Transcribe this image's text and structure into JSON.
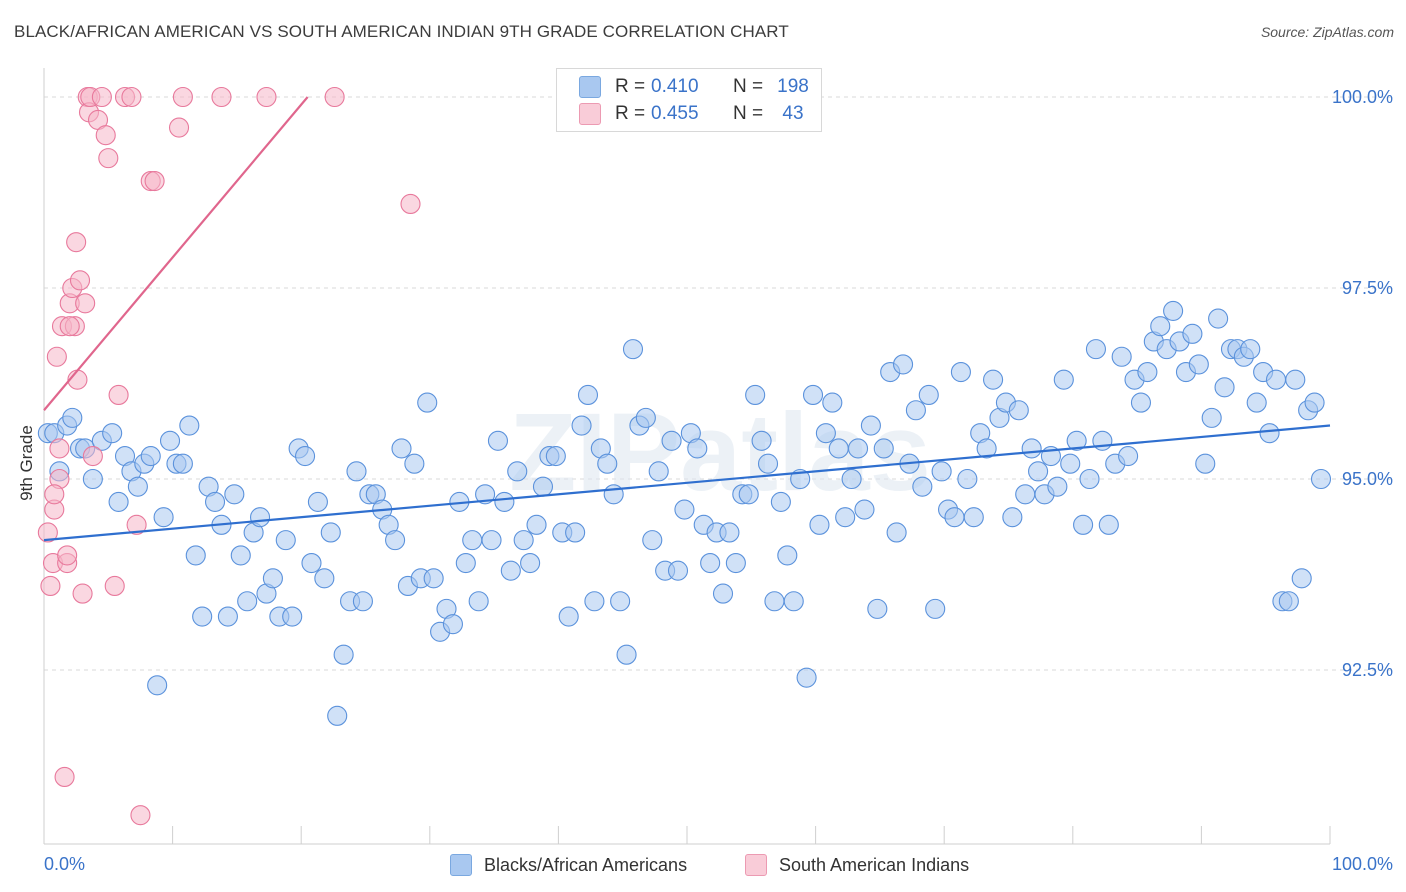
{
  "header": {
    "title": "BLACK/AFRICAN AMERICAN VS SOUTH AMERICAN INDIAN 9TH GRADE CORRELATION CHART",
    "source": "Source: ZipAtlas.com"
  },
  "watermark": "ZIPatlas",
  "legend_top": {
    "rows": [
      {
        "r_label": "R =",
        "r_value": "0.410",
        "n_label": "N =",
        "n_value": "198",
        "color": "#a9c8f0"
      },
      {
        "r_label": "R =",
        "r_value": "0.455",
        "n_label": "N =",
        "n_value": "43",
        "color": "#f5b6c8"
      }
    ]
  },
  "legend_bottom": {
    "items": [
      {
        "label": "Blacks/African Americans",
        "color": "#a9c8f0"
      },
      {
        "label": "South American Indians",
        "color": "#f5b6c8"
      }
    ]
  },
  "chart_data": {
    "type": "scatter",
    "title": "BLACK/AFRICAN AMERICAN VS SOUTH AMERICAN INDIAN 9TH GRADE CORRELATION CHART",
    "ylabel": "9th Grade",
    "xlabel": "",
    "xlim": [
      0,
      100
    ],
    "ylim": [
      90.0,
      100.2
    ],
    "x_tick_labels": [
      "0.0%",
      "100.0%"
    ],
    "y_ticks": [
      92.5,
      95.0,
      97.5,
      100.0
    ],
    "y_tick_labels": [
      "92.5%",
      "95.0%",
      "97.5%",
      "100.0%"
    ],
    "grid": "horizontal dashed",
    "legend_position": "top-center",
    "series": [
      {
        "name": "Blacks/African Americans",
        "color": "#5b92dc",
        "fill": "#a9c8f0",
        "trend": {
          "x": [
            0,
            100
          ],
          "y": [
            94.2,
            95.7
          ]
        },
        "points": [
          [
            0.3,
            95.6
          ],
          [
            0.8,
            95.6
          ],
          [
            1.2,
            95.1
          ],
          [
            1.8,
            95.7
          ],
          [
            2.2,
            95.8
          ],
          [
            2.8,
            95.4
          ],
          [
            3.2,
            95.4
          ],
          [
            3.8,
            95.0
          ],
          [
            4.5,
            95.5
          ],
          [
            5.3,
            95.6
          ],
          [
            5.8,
            94.7
          ],
          [
            6.3,
            95.3
          ],
          [
            6.8,
            95.1
          ],
          [
            7.3,
            94.9
          ],
          [
            7.8,
            95.2
          ],
          [
            8.3,
            95.3
          ],
          [
            8.8,
            92.3
          ],
          [
            9.3,
            94.5
          ],
          [
            9.8,
            95.5
          ],
          [
            10.3,
            95.2
          ],
          [
            10.8,
            95.2
          ],
          [
            11.3,
            95.7
          ],
          [
            11.8,
            94.0
          ],
          [
            12.3,
            93.2
          ],
          [
            12.8,
            94.9
          ],
          [
            13.3,
            94.7
          ],
          [
            13.8,
            94.4
          ],
          [
            14.3,
            93.2
          ],
          [
            14.8,
            94.8
          ],
          [
            15.3,
            94.0
          ],
          [
            15.8,
            93.4
          ],
          [
            16.3,
            94.3
          ],
          [
            16.8,
            94.5
          ],
          [
            17.3,
            93.5
          ],
          [
            17.8,
            93.7
          ],
          [
            18.3,
            93.2
          ],
          [
            18.8,
            94.2
          ],
          [
            19.3,
            93.2
          ],
          [
            19.8,
            95.4
          ],
          [
            20.3,
            95.3
          ],
          [
            20.8,
            93.9
          ],
          [
            21.3,
            94.7
          ],
          [
            21.8,
            93.7
          ],
          [
            22.3,
            94.3
          ],
          [
            22.8,
            91.9
          ],
          [
            23.3,
            92.7
          ],
          [
            23.8,
            93.4
          ],
          [
            24.3,
            95.1
          ],
          [
            24.8,
            93.4
          ],
          [
            25.3,
            94.8
          ],
          [
            25.8,
            94.8
          ],
          [
            26.3,
            94.6
          ],
          [
            26.8,
            94.4
          ],
          [
            27.3,
            94.2
          ],
          [
            27.8,
            95.4
          ],
          [
            28.3,
            93.6
          ],
          [
            28.8,
            95.2
          ],
          [
            29.3,
            93.7
          ],
          [
            29.8,
            96.0
          ],
          [
            30.3,
            93.7
          ],
          [
            30.8,
            93.0
          ],
          [
            31.3,
            93.3
          ],
          [
            31.8,
            93.1
          ],
          [
            32.3,
            94.7
          ],
          [
            32.8,
            93.9
          ],
          [
            33.3,
            94.2
          ],
          [
            33.8,
            93.4
          ],
          [
            34.3,
            94.8
          ],
          [
            34.8,
            94.2
          ],
          [
            35.3,
            95.5
          ],
          [
            35.8,
            94.7
          ],
          [
            36.3,
            93.8
          ],
          [
            36.8,
            95.1
          ],
          [
            37.3,
            94.2
          ],
          [
            37.8,
            93.9
          ],
          [
            38.3,
            94.4
          ],
          [
            38.8,
            94.9
          ],
          [
            39.3,
            95.3
          ],
          [
            39.8,
            95.3
          ],
          [
            40.3,
            94.3
          ],
          [
            40.8,
            93.2
          ],
          [
            41.3,
            94.3
          ],
          [
            41.8,
            95.7
          ],
          [
            42.3,
            96.1
          ],
          [
            42.8,
            93.4
          ],
          [
            43.3,
            95.4
          ],
          [
            43.8,
            95.2
          ],
          [
            44.3,
            94.8
          ],
          [
            44.8,
            93.4
          ],
          [
            45.3,
            92.7
          ],
          [
            45.8,
            96.7
          ],
          [
            46.3,
            95.7
          ],
          [
            46.8,
            95.8
          ],
          [
            47.3,
            94.2
          ],
          [
            47.8,
            95.1
          ],
          [
            48.3,
            93.8
          ],
          [
            48.8,
            95.5
          ],
          [
            49.3,
            93.8
          ],
          [
            49.8,
            94.6
          ],
          [
            50.3,
            95.6
          ],
          [
            50.8,
            95.4
          ],
          [
            51.3,
            94.4
          ],
          [
            51.8,
            93.9
          ],
          [
            52.3,
            94.3
          ],
          [
            52.8,
            93.5
          ],
          [
            53.3,
            94.3
          ],
          [
            53.8,
            93.9
          ],
          [
            54.3,
            94.8
          ],
          [
            54.8,
            94.8
          ],
          [
            55.3,
            96.1
          ],
          [
            55.8,
            95.5
          ],
          [
            56.3,
            95.2
          ],
          [
            56.8,
            93.4
          ],
          [
            57.3,
            94.7
          ],
          [
            57.8,
            94.0
          ],
          [
            58.3,
            93.4
          ],
          [
            58.8,
            95.0
          ],
          [
            59.3,
            92.4
          ],
          [
            59.8,
            96.1
          ],
          [
            60.3,
            94.4
          ],
          [
            60.8,
            95.6
          ],
          [
            61.3,
            96.0
          ],
          [
            61.8,
            95.4
          ],
          [
            62.3,
            94.5
          ],
          [
            62.8,
            95.0
          ],
          [
            63.3,
            95.4
          ],
          [
            63.8,
            94.6
          ],
          [
            64.3,
            95.7
          ],
          [
            64.8,
            93.3
          ],
          [
            65.3,
            95.4
          ],
          [
            65.8,
            96.4
          ],
          [
            66.3,
            94.3
          ],
          [
            66.8,
            96.5
          ],
          [
            67.3,
            95.2
          ],
          [
            67.8,
            95.9
          ],
          [
            68.3,
            94.9
          ],
          [
            68.8,
            96.1
          ],
          [
            69.3,
            93.3
          ],
          [
            69.8,
            95.1
          ],
          [
            70.3,
            94.6
          ],
          [
            70.8,
            94.5
          ],
          [
            71.3,
            96.4
          ],
          [
            71.8,
            95.0
          ],
          [
            72.3,
            94.5
          ],
          [
            72.8,
            95.6
          ],
          [
            73.3,
            95.4
          ],
          [
            73.8,
            96.3
          ],
          [
            74.3,
            95.8
          ],
          [
            74.8,
            96.0
          ],
          [
            75.3,
            94.5
          ],
          [
            75.8,
            95.9
          ],
          [
            76.3,
            94.8
          ],
          [
            76.8,
            95.4
          ],
          [
            77.3,
            95.1
          ],
          [
            77.8,
            94.8
          ],
          [
            78.3,
            95.3
          ],
          [
            78.8,
            94.9
          ],
          [
            79.3,
            96.3
          ],
          [
            79.8,
            95.2
          ],
          [
            80.3,
            95.5
          ],
          [
            80.8,
            94.4
          ],
          [
            81.3,
            95.0
          ],
          [
            81.8,
            96.7
          ],
          [
            82.3,
            95.5
          ],
          [
            82.8,
            94.4
          ],
          [
            83.3,
            95.2
          ],
          [
            83.8,
            96.6
          ],
          [
            84.3,
            95.3
          ],
          [
            84.8,
            96.3
          ],
          [
            85.3,
            96.0
          ],
          [
            85.8,
            96.4
          ],
          [
            86.3,
            96.8
          ],
          [
            86.8,
            97.0
          ],
          [
            87.3,
            96.7
          ],
          [
            87.8,
            97.2
          ],
          [
            88.3,
            96.8
          ],
          [
            88.8,
            96.4
          ],
          [
            89.3,
            96.9
          ],
          [
            89.8,
            96.5
          ],
          [
            90.3,
            95.2
          ],
          [
            90.8,
            95.8
          ],
          [
            91.3,
            97.1
          ],
          [
            91.8,
            96.2
          ],
          [
            92.3,
            96.7
          ],
          [
            92.8,
            96.7
          ],
          [
            93.3,
            96.6
          ],
          [
            93.8,
            96.7
          ],
          [
            94.3,
            96.0
          ],
          [
            94.8,
            96.4
          ],
          [
            95.3,
            95.6
          ],
          [
            95.8,
            96.3
          ],
          [
            96.3,
            93.4
          ],
          [
            96.8,
            93.4
          ],
          [
            97.3,
            96.3
          ],
          [
            97.8,
            93.7
          ],
          [
            98.3,
            95.9
          ],
          [
            98.8,
            96.0
          ],
          [
            99.3,
            95.0
          ]
        ]
      },
      {
        "name": "South American Indians",
        "color": "#e8799c",
        "fill": "#f5b6c8",
        "trend": {
          "x": [
            0,
            20.5
          ],
          "y": [
            95.9,
            100.0
          ]
        },
        "points": [
          [
            0.3,
            94.3
          ],
          [
            0.5,
            93.6
          ],
          [
            0.7,
            93.9
          ],
          [
            0.8,
            94.6
          ],
          [
            1.0,
            96.6
          ],
          [
            1.2,
            95.0
          ],
          [
            1.4,
            97.0
          ],
          [
            1.6,
            91.1
          ],
          [
            1.8,
            93.9
          ],
          [
            2.0,
            97.3
          ],
          [
            2.2,
            97.5
          ],
          [
            2.4,
            97.0
          ],
          [
            2.5,
            98.1
          ],
          [
            2.6,
            96.3
          ],
          [
            2.8,
            97.6
          ],
          [
            3.0,
            93.5
          ],
          [
            3.2,
            97.3
          ],
          [
            3.4,
            100.0
          ],
          [
            3.5,
            99.8
          ],
          [
            3.6,
            100.0
          ],
          [
            3.8,
            95.3
          ],
          [
            4.2,
            99.7
          ],
          [
            4.5,
            100.0
          ],
          [
            4.8,
            99.5
          ],
          [
            5.0,
            99.2
          ],
          [
            5.5,
            93.6
          ],
          [
            5.8,
            96.1
          ],
          [
            6.3,
            100.0
          ],
          [
            6.8,
            100.0
          ],
          [
            7.2,
            94.4
          ],
          [
            7.5,
            90.6
          ],
          [
            8.3,
            98.9
          ],
          [
            8.6,
            98.9
          ],
          [
            10.5,
            99.6
          ],
          [
            10.8,
            100.0
          ],
          [
            13.8,
            100.0
          ],
          [
            17.3,
            100.0
          ],
          [
            22.6,
            100.0
          ],
          [
            28.5,
            98.6
          ],
          [
            1.2,
            95.4
          ],
          [
            2.0,
            97.0
          ],
          [
            1.8,
            94.0
          ],
          [
            0.8,
            94.8
          ]
        ]
      }
    ]
  }
}
